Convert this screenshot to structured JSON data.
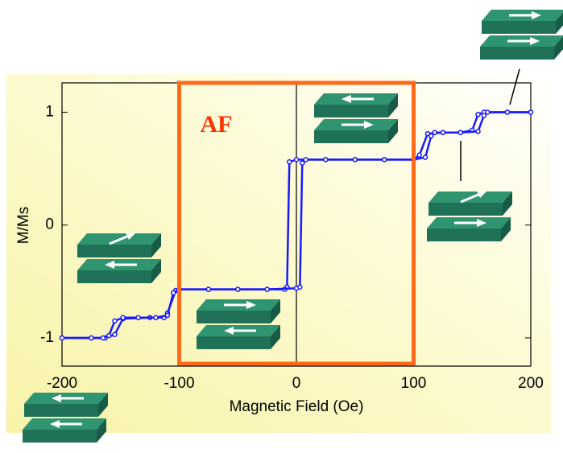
{
  "chart_data": {
    "type": "line",
    "x_label": "Magnetic Field (Oe)",
    "y_label": "M/Ms",
    "xlim": [
      -200,
      200
    ],
    "ylim": [
      -1.25,
      1.26
    ],
    "xticks": [
      -200,
      -100,
      0,
      100,
      200
    ],
    "yticks": [
      -1,
      0,
      1
    ],
    "annotations": [
      {
        "label": "AF",
        "x_range": [
          -100,
          100
        ],
        "color": "#ff6a1a"
      }
    ],
    "series": [
      {
        "color": "#1a1aff",
        "x": [
          200,
          180,
          160,
          155,
          150,
          140,
          125,
          112,
          105,
          100,
          75,
          50,
          25,
          0,
          -6,
          -8,
          -10,
          -25,
          -50,
          -75,
          -100,
          -103,
          -110,
          -113,
          -125,
          -148,
          -155,
          -163,
          -175,
          -200
        ],
        "values": [
          1,
          1,
          1,
          0.98,
          0.84,
          0.82,
          0.82,
          0.81,
          0.62,
          0.58,
          0.58,
          0.58,
          0.58,
          0.58,
          0.56,
          -0.55,
          -0.57,
          -0.57,
          -0.57,
          -0.57,
          -0.57,
          -0.58,
          -0.78,
          -0.82,
          -0.82,
          -0.83,
          -0.97,
          -1,
          -1,
          -1
        ]
      },
      {
        "color": "#1a1aff",
        "x": [
          -200,
          -175,
          -165,
          -160,
          -155,
          -148,
          -135,
          -120,
          -110,
          -105,
          -100,
          -75,
          -50,
          -25,
          0,
          3,
          5,
          8,
          25,
          50,
          75,
          100,
          110,
          115,
          118,
          125,
          140,
          155,
          160,
          163,
          180,
          200
        ],
        "values": [
          -1,
          -1,
          -1,
          -0.98,
          -0.85,
          -0.82,
          -0.82,
          -0.82,
          -0.8,
          -0.6,
          -0.57,
          -0.57,
          -0.57,
          -0.57,
          -0.56,
          -0.55,
          0.55,
          0.58,
          0.58,
          0.58,
          0.58,
          0.58,
          0.6,
          0.79,
          0.82,
          0.82,
          0.82,
          0.83,
          0.97,
          1,
          1,
          1
        ]
      }
    ]
  }
}
